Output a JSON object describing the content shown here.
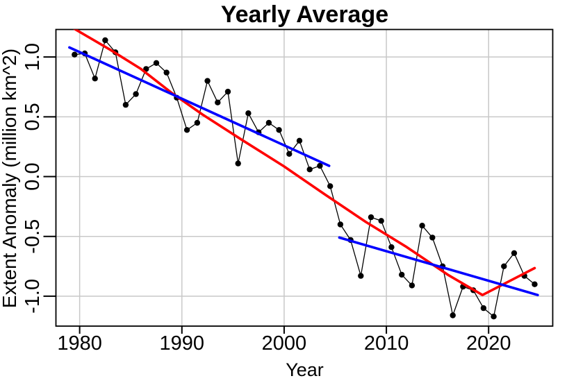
{
  "chart_data": {
    "type": "line",
    "title": "Yearly Average",
    "xlabel": "Year",
    "ylabel": "Extent Anomaly (million km^2)",
    "xlim": [
      1977.68,
      2026.27
    ],
    "ylim": [
      -1.25,
      1.23
    ],
    "grid": true,
    "legend": "none",
    "x_ticks": {
      "values": [
        1980,
        1990,
        2000,
        2010,
        2020
      ],
      "labels": [
        "1980",
        "1990",
        "2000",
        "2010",
        "2020"
      ]
    },
    "y_ticks": {
      "values": [
        -1.0,
        -0.5,
        0.0,
        0.5,
        1.0
      ],
      "labels": [
        "-1.0",
        "-0.5",
        "0.0",
        "0.5",
        "1.0"
      ]
    },
    "colors": {
      "data": "#000000",
      "trend": "#ff0000",
      "fit": "#0000ff",
      "gridline": "#c8c8c8"
    },
    "series": [
      {
        "name": "yearly-average-anomaly",
        "style": "line-markers",
        "color": "#000000",
        "years": [
          1979,
          1980,
          1981,
          1982,
          1983,
          1984,
          1985,
          1986,
          1987,
          1988,
          1989,
          1990,
          1991,
          1992,
          1993,
          1994,
          1995,
          1996,
          1997,
          1998,
          1999,
          2000,
          2001,
          2002,
          2003,
          2004,
          2005,
          2006,
          2007,
          2008,
          2009,
          2010,
          2011,
          2012,
          2013,
          2014,
          2015,
          2016,
          2017,
          2018,
          2019,
          2020,
          2021,
          2022,
          2023,
          2024
        ],
        "values": [
          1.02,
          1.03,
          0.82,
          1.14,
          1.04,
          0.6,
          0.69,
          0.9,
          0.95,
          0.87,
          0.66,
          0.39,
          0.45,
          0.8,
          0.62,
          0.71,
          0.11,
          0.53,
          0.37,
          0.45,
          0.39,
          0.19,
          0.3,
          0.06,
          0.09,
          -0.08,
          -0.4,
          -0.53,
          -0.83,
          -0.34,
          -0.37,
          -0.59,
          -0.82,
          -0.91,
          -0.41,
          -0.51,
          -0.75,
          -1.16,
          -0.92,
          -0.95,
          -1.1,
          -1.17,
          -0.75,
          -0.64,
          -0.83,
          -0.9
        ]
      },
      {
        "name": "trend-red-smooth",
        "style": "line",
        "color": "#ff0000",
        "x": [
          1979.2,
          1983,
          1986,
          1989,
          1992,
          1996,
          2000,
          2004,
          2008,
          2012,
          2016,
          2019.4,
          2024.5
        ],
        "values": [
          1.25,
          1.06,
          0.9,
          0.7,
          0.52,
          0.3,
          0.085,
          -0.15,
          -0.38,
          -0.59,
          -0.82,
          -0.99,
          -0.765
        ]
      },
      {
        "name": "fit-blue-1979-2004",
        "style": "line",
        "color": "#0000ff",
        "x": [
          1979.0,
          2004.4
        ],
        "values": [
          1.08,
          0.09
        ]
      },
      {
        "name": "fit-blue-2005-2024",
        "style": "line",
        "color": "#0000ff",
        "x": [
          2005.4,
          2024.8
        ],
        "values": [
          -0.51,
          -0.99
        ]
      }
    ]
  }
}
